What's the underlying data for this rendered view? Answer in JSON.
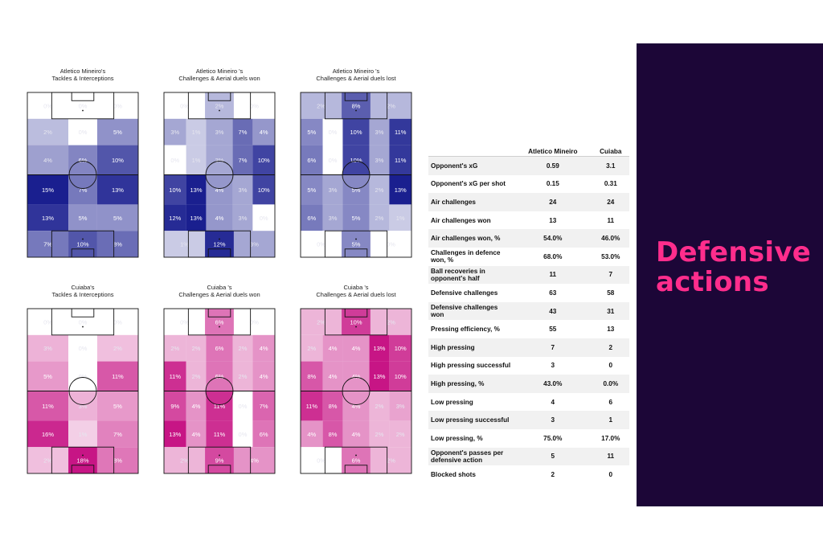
{
  "panel": {
    "title": "Defensive actions"
  },
  "table": {
    "headers": [
      "",
      "Atletico Mineiro",
      "Cuiaba"
    ],
    "rows": [
      [
        "Opponent's xG",
        "0.59",
        "3.1"
      ],
      [
        "Opponent's xG per shot",
        "0.15",
        "0.31"
      ],
      [
        "Air challenges",
        "24",
        "24"
      ],
      [
        "Air challenges won",
        "13",
        "11"
      ],
      [
        "Air challenges won, %",
        "54.0%",
        "46.0%"
      ],
      [
        "Challenges in defence won, %",
        "68.0%",
        "53.0%"
      ],
      [
        "Ball recoveries in opponent's half",
        "11",
        "7"
      ],
      [
        "Defensive challenges",
        "63",
        "58"
      ],
      [
        "Defensive challenges won",
        "43",
        "31"
      ],
      [
        "Pressing efficiency, %",
        "55",
        "13"
      ],
      [
        "High pressing",
        "7",
        "2"
      ],
      [
        "High pressing successful",
        "3",
        "0"
      ],
      [
        "High pressing, %",
        "43.0%",
        "0.0%"
      ],
      [
        "Low pressing",
        "4",
        "6"
      ],
      [
        "Low pressing successful",
        "3",
        "1"
      ],
      [
        "Low pressing, %",
        "75.0%",
        "17.0%"
      ],
      [
        "Opponent's passes per defensive action",
        "5",
        "11"
      ],
      [
        "Blocked shots",
        "2",
        "0"
      ]
    ]
  },
  "chart_data": [
    {
      "type": "heatmap",
      "title": "Atletico Mineiro's\nTackles & Interceptions",
      "team": "Atletico Mineiro",
      "color": "#1a1f8f",
      "zones": [
        [
          0,
          0,
          0
        ],
        [
          2,
          0,
          5
        ],
        [
          4,
          6,
          10
        ],
        [
          15,
          7,
          13
        ],
        [
          13,
          5,
          5
        ],
        [
          7,
          10,
          8
        ]
      ],
      "zone_labels": [
        [
          "0%",
          "0%",
          "0%"
        ],
        [
          "2%",
          "0%",
          "5%"
        ],
        [
          "4%",
          "6%",
          "10%"
        ],
        [
          "15%",
          "7%",
          "13%"
        ],
        [
          "13%",
          "5%",
          "5%"
        ],
        [
          "7%",
          "10%",
          "8%"
        ]
      ]
    },
    {
      "type": "heatmap",
      "title": "Atletico Mineiro 's\nChallenges & Aerial duels won",
      "team": "Atletico Mineiro",
      "color": "#1a1f8f",
      "zones": [
        [
          0,
          2,
          0
        ],
        [
          3,
          1,
          3,
          7,
          4
        ],
        [
          0,
          1,
          3,
          7,
          10
        ],
        [
          10,
          13,
          4,
          3,
          10
        ],
        [
          12,
          13,
          4,
          3,
          0
        ],
        [
          1,
          12,
          3
        ]
      ],
      "zone_labels": [
        [
          "0%",
          "2%",
          "0%"
        ],
        [
          "3%",
          "1%",
          "3%",
          "7%",
          "4%"
        ],
        [
          "0%",
          "1%",
          "3%",
          "7%",
          "10%"
        ],
        [
          "10%",
          "13%",
          "4%",
          "3%",
          "10%"
        ],
        [
          "12%",
          "13%",
          "4%",
          "3%",
          "0%"
        ],
        [
          "1%",
          "12%",
          "3%"
        ]
      ]
    },
    {
      "type": "heatmap",
      "title": "Atletico Mineiro 's\nChallenges & Aerial duels lost",
      "team": "Atletico Mineiro",
      "color": "#1a1f8f",
      "zones": [
        [
          2,
          8,
          2
        ],
        [
          5,
          0,
          10,
          3,
          11
        ],
        [
          6,
          0,
          10,
          3,
          11
        ],
        [
          5,
          3,
          5,
          2,
          13
        ],
        [
          6,
          3,
          5,
          2,
          1
        ],
        [
          0,
          5,
          0
        ]
      ],
      "zone_labels": [
        [
          "2%",
          "8%",
          "2%"
        ],
        [
          "5%",
          "0%",
          "10%",
          "3%",
          "11%"
        ],
        [
          "6%",
          "0%",
          "10%",
          "3%",
          "11%"
        ],
        [
          "5%",
          "3%",
          "5%",
          "2%",
          "13%"
        ],
        [
          "6%",
          "3%",
          "5%",
          "2%",
          "1%"
        ],
        [
          "0%",
          "5%",
          "0%"
        ]
      ]
    },
    {
      "type": "heatmap",
      "title": "Cuiaba's\nTackles & Interceptions",
      "team": "Cuiaba",
      "color": "#c71585",
      "zones": [
        [
          0,
          0,
          0
        ],
        [
          3,
          0,
          2
        ],
        [
          5,
          0,
          11
        ],
        [
          11,
          3,
          5
        ],
        [
          16,
          1,
          7
        ],
        [
          2,
          18,
          8
        ]
      ],
      "zone_labels": [
        [
          "0%",
          "0%",
          "0%"
        ],
        [
          "3%",
          "0%",
          "2%"
        ],
        [
          "5%",
          "0%",
          "11%"
        ],
        [
          "11%",
          "3%",
          "5%"
        ],
        [
          "16%",
          "1%",
          "7%"
        ],
        [
          "2%",
          "18%",
          "8%"
        ]
      ]
    },
    {
      "type": "heatmap",
      "title": "Cuiaba 's\nChallenges & Aerial duels won",
      "team": "Cuiaba",
      "color": "#c71585",
      "zones": [
        [
          0,
          6,
          0
        ],
        [
          2,
          2,
          6,
          2,
          4
        ],
        [
          11,
          2,
          6,
          2,
          4
        ],
        [
          9,
          4,
          11,
          0,
          7
        ],
        [
          13,
          4,
          11,
          0,
          6
        ],
        [
          2,
          9,
          4
        ]
      ],
      "zone_labels": [
        [
          "0%",
          "6%",
          "0%"
        ],
        [
          "2%",
          "2%",
          "6%",
          "2%",
          "4%"
        ],
        [
          "11%",
          "2%",
          "6%",
          "2%",
          "4%"
        ],
        [
          "9%",
          "4%",
          "11%",
          "0%",
          "7%"
        ],
        [
          "13%",
          "4%",
          "11%",
          "0%",
          "6%"
        ],
        [
          "2%",
          "9%",
          "4%"
        ]
      ]
    },
    {
      "type": "heatmap",
      "title": "Cuiaba 's\nChallenges & Aerial duels lost",
      "team": "Cuiaba",
      "color": "#c71585",
      "zones": [
        [
          2,
          10,
          2
        ],
        [
          2,
          4,
          4,
          13,
          10
        ],
        [
          8,
          4,
          4,
          13,
          10
        ],
        [
          11,
          8,
          4,
          2,
          3
        ],
        [
          4,
          8,
          4,
          2,
          2
        ],
        [
          0,
          6,
          2
        ]
      ],
      "zone_labels": [
        [
          "2%",
          "10%",
          "2%"
        ],
        [
          "2%",
          "4%",
          "4%",
          "13%",
          "10%"
        ],
        [
          "8%",
          "4%",
          "4%",
          "13%",
          "10%"
        ],
        [
          "11%",
          "8%",
          "4%",
          "2%",
          "3%"
        ],
        [
          "4%",
          "8%",
          "4%",
          "2%",
          "2%"
        ],
        [
          "0%",
          "6%",
          "2%"
        ]
      ]
    }
  ]
}
